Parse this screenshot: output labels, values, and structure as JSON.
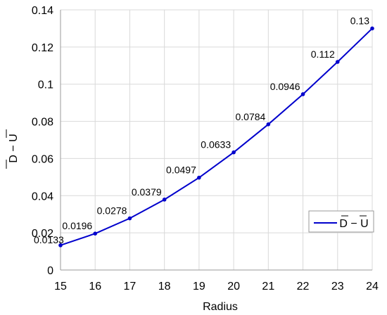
{
  "chart_data": {
    "type": "line",
    "xlabel": "Radius",
    "ylabel": "D − U",
    "xlim": [
      15,
      24
    ],
    "ylim": [
      0,
      0.14
    ],
    "x_ticks": [
      "15",
      "16",
      "17",
      "18",
      "19",
      "20",
      "21",
      "22",
      "23",
      "24"
    ],
    "y_ticks": [
      "0",
      "0.02",
      "0.04",
      "0.06",
      "0.08",
      "0.1",
      "0.12",
      "0.14"
    ],
    "grid": true,
    "legend_position": "bottom-right",
    "series": [
      {
        "name": "D − U",
        "color": "#0000CC",
        "x": [
          15,
          16,
          17,
          18,
          19,
          20,
          21,
          22,
          23,
          24
        ],
        "y": [
          0.0133,
          0.0196,
          0.0278,
          0.0379,
          0.0497,
          0.0633,
          0.0784,
          0.0946,
          0.112,
          0.13
        ],
        "labels": [
          "0.0133",
          "0.0196",
          "0.0278",
          "0.0379",
          "0.0497",
          "0.0633",
          "0.0784",
          "0.0946",
          "0.112",
          "0.13"
        ]
      }
    ]
  }
}
